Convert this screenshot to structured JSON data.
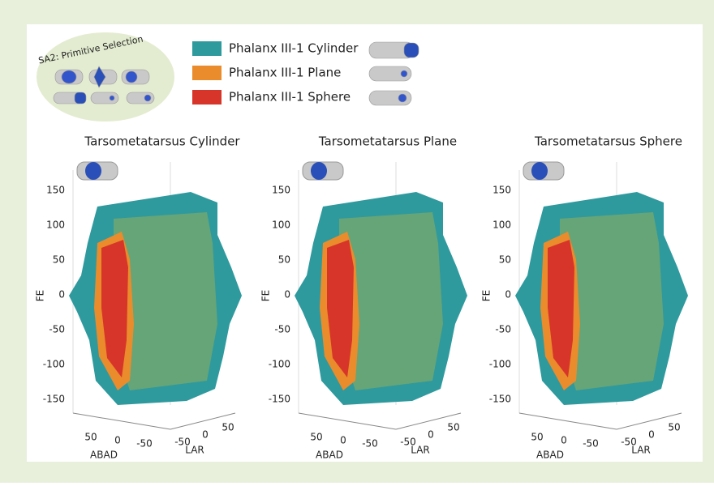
{
  "legend_title": "SA2: Primitive Selection",
  "legend": [
    {
      "label": "Phalanx III-1 Cylinder",
      "color": "#2e9a9e"
    },
    {
      "label": "Phalanx III-1 Plane",
      "color": "#ea8c2c"
    },
    {
      "label": "Phalanx III-1 Sphere",
      "color": "#d8352a"
    }
  ],
  "panels": [
    {
      "title": "Tarsometatarsus Cylinder",
      "y_axis_label": "FE",
      "y_ticks": [
        150,
        100,
        50,
        0,
        -50,
        -100,
        -150
      ],
      "abad_label": "ABAD",
      "abad_ticks": [
        50,
        0,
        -50
      ],
      "lar_label": "LAR",
      "lar_ticks": [
        -50,
        0,
        50
      ]
    },
    {
      "title": "Tarsometatarsus Plane",
      "y_axis_label": "FE",
      "y_ticks": [
        150,
        100,
        50,
        0,
        -50,
        -100,
        -150
      ],
      "abad_label": "ABAD",
      "abad_ticks": [
        50,
        0,
        -50
      ],
      "lar_label": "LAR",
      "lar_ticks": [
        -50,
        0,
        50
      ]
    },
    {
      "title": "Tarsometatarsus Sphere",
      "y_axis_label": "FE",
      "y_ticks": [
        150,
        100,
        50,
        0,
        -50,
        -100,
        -150
      ],
      "abad_label": "ABAD",
      "abad_ticks": [
        50,
        0,
        -50
      ],
      "lar_label": "LAR",
      "lar_ticks": [
        -50,
        0,
        50
      ]
    }
  ]
}
